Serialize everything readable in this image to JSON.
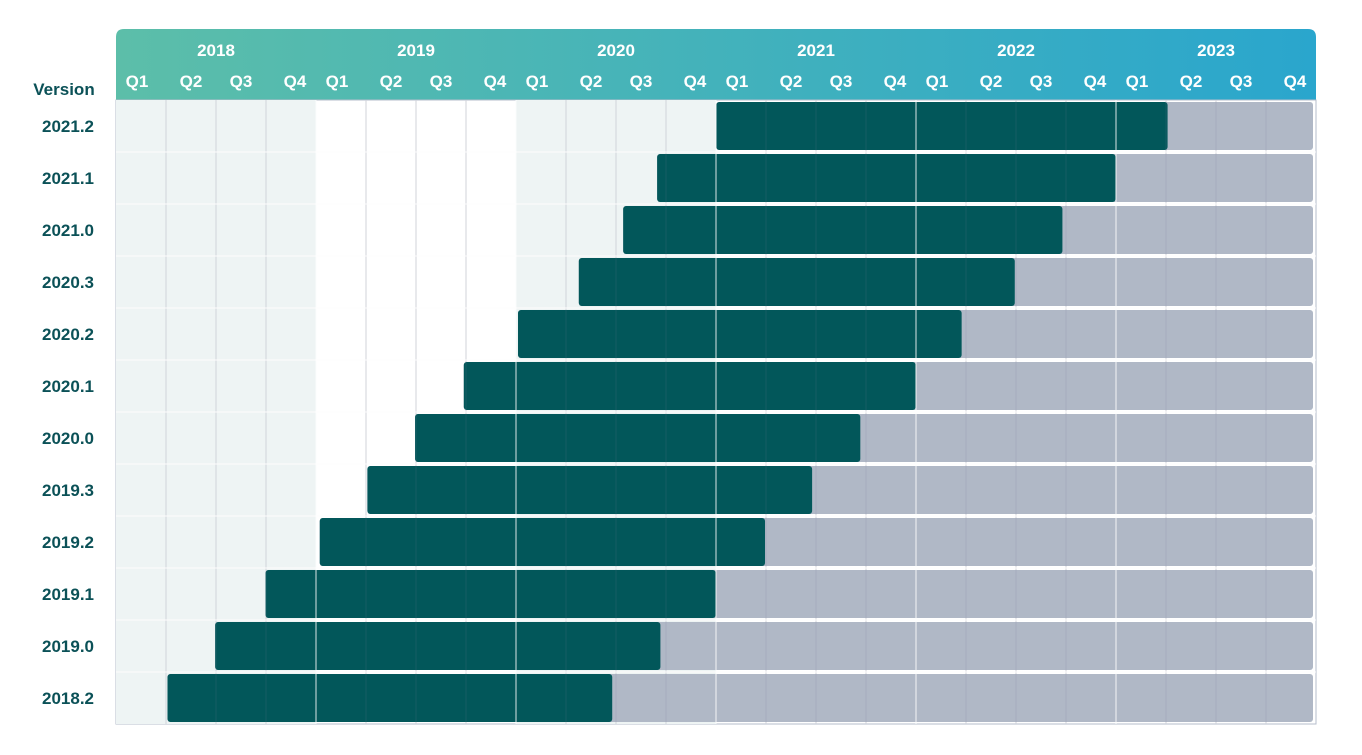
{
  "chart_data": {
    "type": "gantt",
    "title": "",
    "ylabel": "Version",
    "years": [
      "2018",
      "2019",
      "2020",
      "2021",
      "2022",
      "2023"
    ],
    "quarters": [
      "Q1",
      "Q2",
      "Q3",
      "Q4"
    ],
    "x_range": [
      "2018-01-01",
      "2024-01-01"
    ],
    "legend": [],
    "versions": [
      {
        "name": "2021.2",
        "start": "2021-01-01",
        "end": "2023-04-05",
        "faded_end": "2024-01-01"
      },
      {
        "name": "2021.1",
        "start": "2020-09-15",
        "end": "2022-12-31",
        "faded_end": "2024-01-01"
      },
      {
        "name": "2021.0",
        "start": "2020-07-15",
        "end": "2022-09-25",
        "faded_end": "2024-01-01"
      },
      {
        "name": "2020.3",
        "start": "2020-04-25",
        "end": "2022-06-30",
        "faded_end": "2024-01-01"
      },
      {
        "name": "2020.2",
        "start": "2020-01-05",
        "end": "2022-03-25",
        "faded_end": "2024-01-01"
      },
      {
        "name": "2020.1",
        "start": "2019-09-28",
        "end": "2021-12-31",
        "faded_end": "2024-01-01"
      },
      {
        "name": "2020.0",
        "start": "2019-07-01",
        "end": "2021-09-21",
        "faded_end": "2024-01-01"
      },
      {
        "name": "2019.3",
        "start": "2019-04-05",
        "end": "2021-06-25",
        "faded_end": "2024-01-01"
      },
      {
        "name": "2019.2",
        "start": "2019-01-08",
        "end": "2021-03-31",
        "faded_end": "2024-01-01"
      },
      {
        "name": "2019.1",
        "start": "2018-10-01",
        "end": "2020-12-31",
        "faded_end": "2024-01-01"
      },
      {
        "name": "2019.0",
        "start": "2018-07-01",
        "end": "2020-09-21",
        "faded_end": "2024-01-01"
      },
      {
        "name": "2018.2",
        "start": "2018-04-05",
        "end": "2020-06-25",
        "faded_end": "2024-01-01"
      }
    ],
    "colors": {
      "header_start": "#5cbea9",
      "header_end": "#2aa6cd",
      "bar": "#02575a",
      "faded": "#b0b8c6",
      "shade_column": "#eef4f4",
      "plot_bg": "#ffffff",
      "grid": "#e3e6ea",
      "label": "#0b5157",
      "border": "#b5bccb"
    },
    "shaded_years": [
      "2018",
      "2020"
    ]
  }
}
